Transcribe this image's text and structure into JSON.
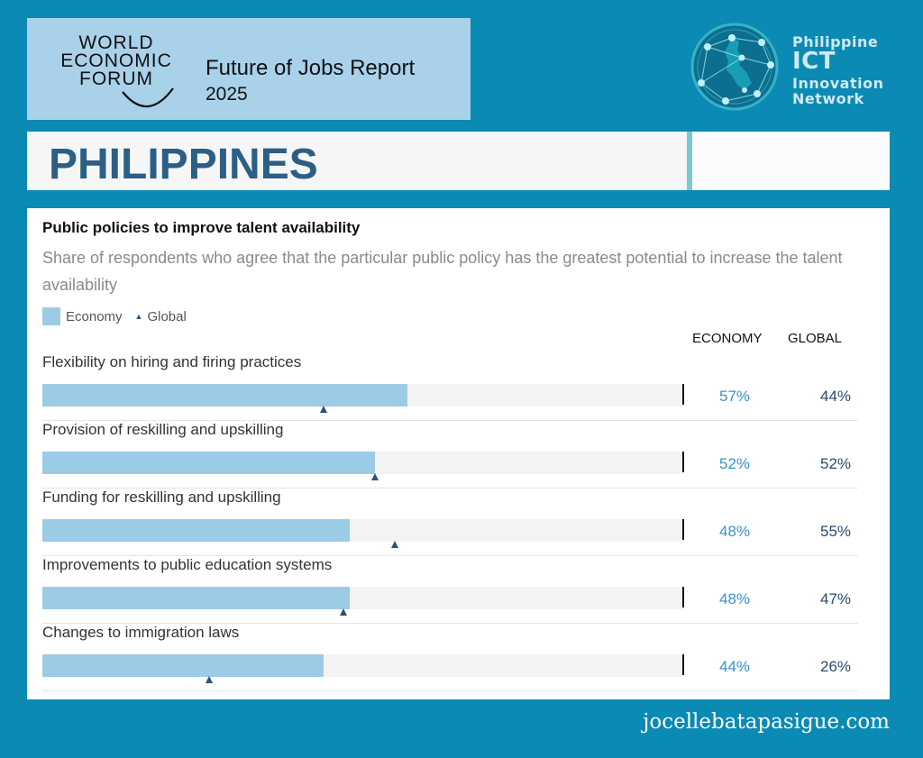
{
  "header": {
    "wef_logo_lines": [
      "WORLD",
      "ECONOMIC",
      "FORUM"
    ],
    "report_title": "Future of Jobs Report",
    "report_year": "2025",
    "network_name": [
      "Philippine",
      "ICT",
      "Innovation",
      "Network"
    ]
  },
  "country": "PHILIPPINES",
  "chart": {
    "title": "Public policies to improve talent availability",
    "subtitle": "Share of respondents who agree that the particular public policy has the greatest potential to increase the talent availability",
    "legend": {
      "economy": "Economy",
      "global": "Global"
    },
    "column_headers": {
      "economy": "ECONOMY",
      "global": "GLOBAL"
    }
  },
  "chart_data": {
    "type": "bar",
    "orientation": "horizontal",
    "categories": [
      "Flexibility on hiring and firing practices",
      "Provision of reskilling and upskilling",
      "Funding for reskilling and upskilling",
      "Improvements to public education systems",
      "Changes to immigration laws"
    ],
    "series": [
      {
        "name": "Economy",
        "values": [
          57,
          52,
          48,
          48,
          44
        ],
        "labels": [
          "57%",
          "52%",
          "48%",
          "48%",
          "44%"
        ],
        "color": "#9ccbe6"
      },
      {
        "name": "Global",
        "values": [
          44,
          52,
          55,
          47,
          26
        ],
        "labels": [
          "44%",
          "52%",
          "55%",
          "47%",
          "26%"
        ],
        "color": "#2f5278",
        "marker": "triangle"
      }
    ],
    "xlim": [
      0,
      100
    ]
  },
  "footer": {
    "website": "jocellebatapasigue.com"
  },
  "colors": {
    "background": "#0b8ab4",
    "header_box": "#a9d1ea",
    "country_text": "#2c5f86",
    "accent": "#79c9cf"
  }
}
